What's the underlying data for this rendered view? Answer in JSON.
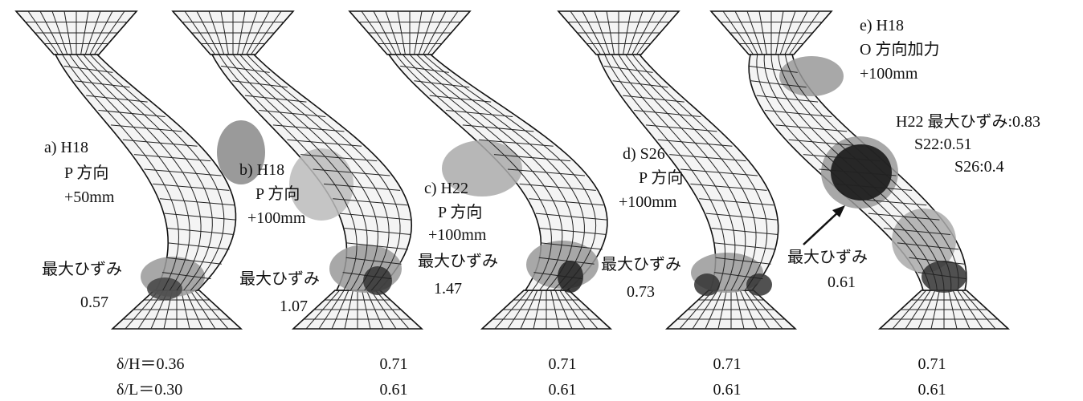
{
  "panels": [
    {
      "case": "a) H18",
      "direction": "P 方向",
      "displacement": "+50mm",
      "max_label": "最大ひずみ",
      "max_value": "0.57"
    },
    {
      "case": "b) H18",
      "direction": "P 方向",
      "displacement": "+100mm",
      "max_label": "最大ひずみ",
      "max_value": "1.07"
    },
    {
      "case": "c) H22",
      "direction": "P 方向",
      "displacement": "+100mm",
      "max_label": "最大ひずみ",
      "max_value": "1.47"
    },
    {
      "case": "d)  S26",
      "direction": "P 方向",
      "displacement": "+100mm",
      "max_label": "最大ひずみ",
      "max_value": "0.73"
    },
    {
      "case": "e)  H18",
      "direction": "O 方向加力",
      "displacement": "+100mm",
      "max_label": "最大ひずみ",
      "max_value": "0.61",
      "notes": [
        "H22 最大ひずみ:0.83",
        "S22:0.51",
        "S26:0.4"
      ]
    }
  ],
  "ratios": [
    {
      "label": "δ/H＝",
      "values": [
        "0.36",
        "0.71",
        "0.71",
        "0.71",
        "0.71"
      ]
    },
    {
      "label": "δ/L＝",
      "values": [
        "0.30",
        "0.61",
        "0.61",
        "0.61",
        "0.61"
      ]
    }
  ]
}
